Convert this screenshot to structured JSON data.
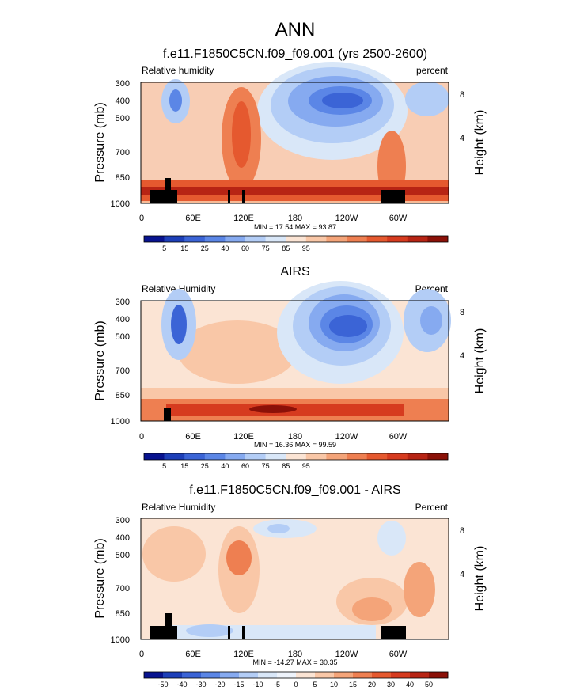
{
  "title": "ANN",
  "chart_data": [
    {
      "type": "heatmap",
      "title": "f.e11.F1850C5CN.f09_f09.001 (yrs 2500-2600)",
      "left_string": "Relative humidity",
      "right_string": "percent",
      "ylabel": "Pressure (mb)",
      "ylabel_right": "Height (km)",
      "x_ticks": [
        "0",
        "60E",
        "120E",
        "180",
        "120W",
        "60W"
      ],
      "y_ticks": [
        "300",
        "400",
        "500",
        "700",
        "850",
        "1000"
      ],
      "height_ticks": [
        "8",
        "4"
      ],
      "stats": "MIN =  17.54  MAX =  93.87",
      "min": 17.54,
      "max": 93.87,
      "colorbar_labels": [
        "5",
        "15",
        "25",
        "40",
        "60",
        "75",
        "85",
        "95"
      ],
      "colors": [
        "#08138f",
        "#1d3fb8",
        "#3b64d6",
        "#5b86e6",
        "#86aaf0",
        "#b3cdf6",
        "#d9e7f8",
        "#fbe4d4",
        "#f9c7a7",
        "#f4a479",
        "#ee7f51",
        "#e5592f",
        "#d63b1f",
        "#b72414",
        "#8b1108"
      ]
    },
    {
      "type": "heatmap",
      "title": "AIRS",
      "left_string": "Relative Humidity",
      "right_string": "Percent",
      "ylabel": "Pressure (mb)",
      "ylabel_right": "Height (km)",
      "x_ticks": [
        "0",
        "60E",
        "120E",
        "180",
        "120W",
        "60W"
      ],
      "y_ticks": [
        "300",
        "400",
        "500",
        "700",
        "850",
        "1000"
      ],
      "height_ticks": [
        "8",
        "4"
      ],
      "stats": "MIN =  16.36  MAX =  99.59",
      "min": 16.36,
      "max": 99.59,
      "colorbar_labels": [
        "5",
        "15",
        "25",
        "40",
        "60",
        "75",
        "85",
        "95"
      ],
      "colors": [
        "#08138f",
        "#1d3fb8",
        "#3b64d6",
        "#5b86e6",
        "#86aaf0",
        "#b3cdf6",
        "#d9e7f8",
        "#fbe4d4",
        "#f9c7a7",
        "#f4a479",
        "#ee7f51",
        "#e5592f",
        "#d63b1f",
        "#b72414",
        "#8b1108"
      ]
    },
    {
      "type": "heatmap",
      "title": "f.e11.F1850C5CN.f09_f09.001 - AIRS",
      "left_string": "Relative Humidity",
      "right_string": "Percent",
      "ylabel": "Pressure (mb)",
      "ylabel_right": "Height (km)",
      "x_ticks": [
        "0",
        "60E",
        "120E",
        "180",
        "120W",
        "60W"
      ],
      "y_ticks": [
        "300",
        "400",
        "500",
        "700",
        "850",
        "1000"
      ],
      "height_ticks": [
        "8",
        "4"
      ],
      "stats": "MIN = -14.27  MAX =  30.35",
      "min": -14.27,
      "max": 30.35,
      "colorbar_labels": [
        "-50",
        "-40",
        "-30",
        "-20",
        "-15",
        "-10",
        "-5",
        "0",
        "5",
        "10",
        "15",
        "20",
        "30",
        "40",
        "50"
      ],
      "colors": [
        "#08138f",
        "#1d3fb8",
        "#3b64d6",
        "#5b86e6",
        "#86aaf0",
        "#b3cdf6",
        "#d9e7f8",
        "#eef3fb",
        "#fbe4d4",
        "#f9c7a7",
        "#f4a479",
        "#ee7f51",
        "#e5592f",
        "#d63b1f",
        "#b72414",
        "#8b1108"
      ]
    }
  ]
}
